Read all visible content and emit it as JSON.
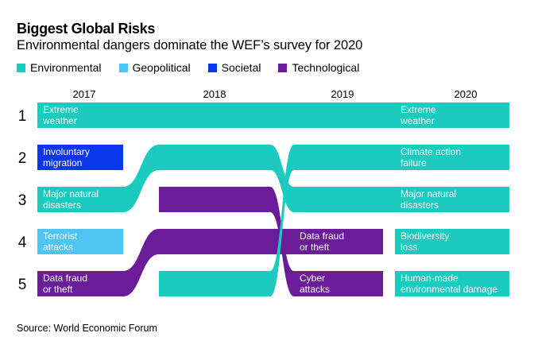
{
  "header": {
    "title": "Biggest Global Risks",
    "subtitle": "Environmental dangers dominate the WEF’s survey for 2020"
  },
  "source": "Source: World Economic Forum",
  "chart_data": {
    "type": "bump",
    "title": "Biggest Global Risks",
    "subtitle": "Environmental dangers dominate the WEF’s survey for 2020",
    "categories": {
      "Environmental": "#1ccbbf",
      "Geopolitical": "#4ec4f3",
      "Societal": "#0a36ec",
      "Technological": "#6b1d99"
    },
    "legend": [
      "Environmental",
      "Geopolitical",
      "Societal",
      "Technological"
    ],
    "years": [
      "2017",
      "2018",
      "2019",
      "2020"
    ],
    "ranks": [
      "1",
      "2",
      "3",
      "4",
      "5"
    ],
    "rankings": {
      "2017": [
        {
          "rank": 1,
          "name": "Extreme weather",
          "lines": [
            "Extreme",
            "weather"
          ],
          "category": "Environmental"
        },
        {
          "rank": 2,
          "name": "Involuntary migration",
          "lines": [
            "Involuntary",
            "migration"
          ],
          "category": "Societal"
        },
        {
          "rank": 3,
          "name": "Major natural disasters",
          "lines": [
            "Major natural",
            "disasters"
          ],
          "category": "Environmental"
        },
        {
          "rank": 4,
          "name": "Terrorist attacks",
          "lines": [
            "Terrorist",
            "attacks"
          ],
          "category": "Geopolitical"
        },
        {
          "rank": 5,
          "name": "Data fraud or theft",
          "lines": [
            "Data fraud",
            "or theft"
          ],
          "category": "Technological"
        }
      ],
      "2018": [
        {
          "rank": 1,
          "name": "Extreme weather",
          "category": "Environmental"
        },
        {
          "rank": 2,
          "name": "Major natural disasters",
          "category": "Environmental"
        },
        {
          "rank": 3,
          "name": "Cyber attacks",
          "category": "Technological"
        },
        {
          "rank": 4,
          "name": "Data fraud or theft",
          "category": "Technological"
        },
        {
          "rank": 5,
          "name": "Climate action failure",
          "category": "Environmental"
        }
      ],
      "2019": [
        {
          "rank": 1,
          "name": "Extreme weather",
          "category": "Environmental"
        },
        {
          "rank": 2,
          "name": "Climate action failure",
          "category": "Environmental"
        },
        {
          "rank": 3,
          "name": "Major natural disasters",
          "category": "Environmental"
        },
        {
          "rank": 4,
          "name": "Data fraud or theft",
          "lines": [
            "Data fraud",
            "or theft"
          ],
          "category": "Technological"
        },
        {
          "rank": 5,
          "name": "Cyber attacks",
          "lines": [
            "Cyber",
            "attacks"
          ],
          "category": "Technological"
        }
      ],
      "2020": [
        {
          "rank": 1,
          "name": "Extreme weather",
          "lines": [
            "Extreme",
            "weather"
          ],
          "category": "Environmental"
        },
        {
          "rank": 2,
          "name": "Climate action failure",
          "lines": [
            "Climate action",
            "failure"
          ],
          "category": "Environmental"
        },
        {
          "rank": 3,
          "name": "Major natural disasters",
          "lines": [
            "Major natural",
            "disasters"
          ],
          "category": "Environmental"
        },
        {
          "rank": 4,
          "name": "Biodiversity loss",
          "lines": [
            "Biodiversity",
            "loss"
          ],
          "category": "Environmental"
        },
        {
          "rank": 5,
          "name": "Human-made environmental damage",
          "lines": [
            "Human-made",
            "environmental damage"
          ],
          "category": "Environmental"
        }
      ]
    }
  }
}
